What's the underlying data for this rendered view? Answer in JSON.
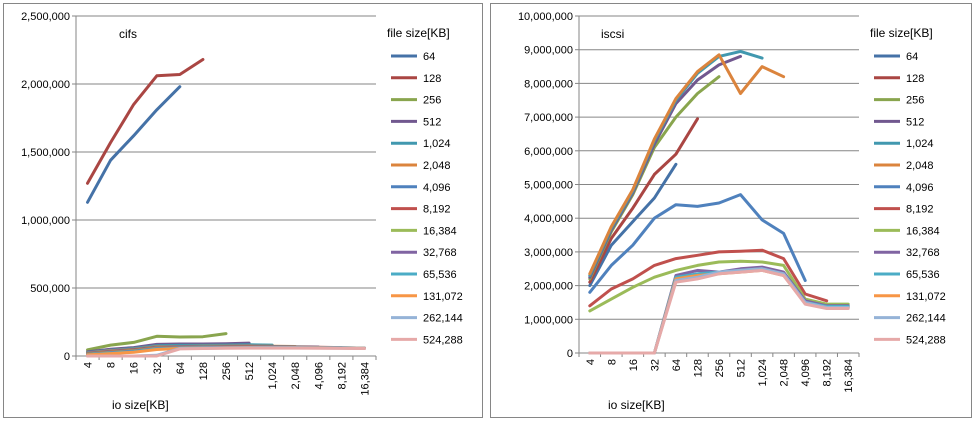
{
  "chart_data": [
    {
      "type": "line",
      "title": "cifs",
      "xlabel": "io size[KB]",
      "legend_title": "file size[KB]",
      "legend_position": "right",
      "grid": "horizontal",
      "categories": [
        "4",
        "8",
        "16",
        "32",
        "64",
        "128",
        "256",
        "512",
        "1,024",
        "2,048",
        "4,096",
        "8,192",
        "16,384"
      ],
      "ylim": [
        0,
        2500000
      ],
      "yticks": [
        "0",
        "500,000",
        "1,000,000",
        "1,500,000",
        "2,000,000",
        "2,500,000"
      ],
      "series": [
        {
          "name": "64",
          "color": "#4572A7",
          "values": [
            1130000,
            1440000,
            1620000,
            1810000,
            1980000,
            null,
            null,
            null,
            null,
            null,
            null,
            null,
            null
          ]
        },
        {
          "name": "128",
          "color": "#AA4643",
          "values": [
            1270000,
            1570000,
            1850000,
            2060000,
            2070000,
            2180000,
            null,
            null,
            null,
            null,
            null,
            null,
            null
          ]
        },
        {
          "name": "256",
          "color": "#89A54E",
          "values": [
            45000,
            80000,
            100000,
            145000,
            140000,
            142000,
            165000,
            null,
            null,
            null,
            null,
            null,
            null
          ]
        },
        {
          "name": "512",
          "color": "#71588F",
          "values": [
            30000,
            50000,
            62000,
            85000,
            88000,
            88000,
            90000,
            95000,
            null,
            null,
            null,
            null,
            null
          ]
        },
        {
          "name": "1,024",
          "color": "#4198AF",
          "values": [
            25000,
            42000,
            55000,
            75000,
            78000,
            78000,
            80000,
            82000,
            80000,
            null,
            null,
            null,
            null
          ]
        },
        {
          "name": "2,048",
          "color": "#DB843D",
          "values": [
            22000,
            38000,
            50000,
            68000,
            70000,
            72000,
            72000,
            74000,
            72000,
            70000,
            null,
            null,
            null
          ]
        },
        {
          "name": "4,096",
          "color": "#4F81BD",
          "values": [
            20000,
            35000,
            48000,
            65000,
            68000,
            70000,
            70000,
            72000,
            70000,
            68000,
            66000,
            null,
            null
          ]
        },
        {
          "name": "8,192",
          "color": "#C0504D",
          "values": [
            18000,
            32000,
            45000,
            62000,
            65000,
            66000,
            68000,
            70000,
            68000,
            66000,
            64000,
            62000,
            null
          ]
        },
        {
          "name": "16,384",
          "color": "#9BBB59",
          "values": [
            15000,
            28000,
            40000,
            58000,
            62000,
            64000,
            65000,
            66000,
            66000,
            64000,
            62000,
            60000,
            58000
          ]
        },
        {
          "name": "32,768",
          "color": "#8064A2",
          "values": [
            12000,
            25000,
            36000,
            55000,
            60000,
            62000,
            63000,
            64000,
            64000,
            63000,
            62000,
            60000,
            58000
          ]
        },
        {
          "name": "65,536",
          "color": "#4BACC6",
          "values": [
            10000,
            22000,
            32000,
            52000,
            58000,
            60000,
            61000,
            62000,
            62000,
            62000,
            61000,
            60000,
            58000
          ]
        },
        {
          "name": "131,072",
          "color": "#F79646",
          "values": [
            8000,
            18000,
            28000,
            48000,
            56000,
            58000,
            60000,
            61000,
            61000,
            61000,
            60000,
            59000,
            57000
          ]
        },
        {
          "name": "262,144",
          "color": "#95B3D7",
          "values": [
            0,
            0,
            0,
            5000,
            55000,
            57000,
            59000,
            60000,
            60000,
            60000,
            59000,
            58000,
            56000
          ]
        },
        {
          "name": "524,288",
          "color": "#E6A9A8",
          "values": [
            0,
            0,
            0,
            0,
            52000,
            55000,
            57000,
            58000,
            58000,
            58000,
            57000,
            56000,
            55000
          ]
        }
      ]
    },
    {
      "type": "line",
      "title": "iscsi",
      "xlabel": "io size[KB]",
      "legend_title": "file size[KB]",
      "legend_position": "right",
      "grid": "horizontal",
      "categories": [
        "4",
        "8",
        "16",
        "32",
        "64",
        "128",
        "256",
        "512",
        "1,024",
        "2,048",
        "4,096",
        "8,192",
        "16,384"
      ],
      "ylim": [
        0,
        10000000
      ],
      "yticks": [
        "0",
        "1,000,000",
        "2,000,000",
        "3,000,000",
        "4,000,000",
        "5,000,000",
        "6,000,000",
        "7,000,000",
        "8,000,000",
        "9,000,000",
        "10,000,000"
      ],
      "series": [
        {
          "name": "64",
          "color": "#4572A7",
          "values": [
            2000000,
            3200000,
            3900000,
            4600000,
            5600000,
            null,
            null,
            null,
            null,
            null,
            null,
            null,
            null
          ]
        },
        {
          "name": "128",
          "color": "#AA4643",
          "values": [
            2100000,
            3400000,
            4300000,
            5300000,
            5900000,
            6950000,
            null,
            null,
            null,
            null,
            null,
            null,
            null
          ]
        },
        {
          "name": "256",
          "color": "#89A54E",
          "values": [
            2200000,
            3600000,
            4700000,
            6100000,
            7000000,
            7700000,
            8200000,
            null,
            null,
            null,
            null,
            null,
            null
          ]
        },
        {
          "name": "512",
          "color": "#71588F",
          "values": [
            2250000,
            3650000,
            4750000,
            6200000,
            7400000,
            8100000,
            8550000,
            8800000,
            null,
            null,
            null,
            null,
            null
          ]
        },
        {
          "name": "1,024",
          "color": "#4198AF",
          "values": [
            2300000,
            3700000,
            4800000,
            6300000,
            7500000,
            8300000,
            8800000,
            8950000,
            8750000,
            null,
            null,
            null,
            null
          ]
        },
        {
          "name": "2,048",
          "color": "#DB843D",
          "values": [
            2350000,
            3750000,
            4850000,
            6350000,
            7550000,
            8350000,
            8850000,
            7700000,
            8500000,
            8200000,
            null,
            null,
            null
          ]
        },
        {
          "name": "4,096",
          "color": "#4F81BD",
          "values": [
            1800000,
            2600000,
            3200000,
            4000000,
            4400000,
            4350000,
            4450000,
            4700000,
            3950000,
            3550000,
            2150000,
            null,
            null
          ]
        },
        {
          "name": "8,192",
          "color": "#C0504D",
          "values": [
            1400000,
            1900000,
            2200000,
            2600000,
            2800000,
            2900000,
            3000000,
            3020000,
            3050000,
            2800000,
            1750000,
            1550000,
            null
          ]
        },
        {
          "name": "16,384",
          "color": "#9BBB59",
          "values": [
            1250000,
            1600000,
            1950000,
            2250000,
            2450000,
            2600000,
            2700000,
            2720000,
            2700000,
            2600000,
            1600000,
            1450000,
            1450000
          ]
        },
        {
          "name": "32,768",
          "color": "#8064A2",
          "values": [
            0,
            0,
            0,
            0,
            2300000,
            2450000,
            2400000,
            2500000,
            2550000,
            2400000,
            1550000,
            1400000,
            1400000
          ]
        },
        {
          "name": "65,536",
          "color": "#4BACC6",
          "values": [
            0,
            0,
            0,
            0,
            2250000,
            2350000,
            2400000,
            2450000,
            2500000,
            2350000,
            1500000,
            1380000,
            1380000
          ]
        },
        {
          "name": "131,072",
          "color": "#F79646",
          "values": [
            0,
            0,
            0,
            0,
            2200000,
            2300000,
            2350000,
            2400000,
            2450000,
            2300000,
            1480000,
            1350000,
            1350000
          ]
        },
        {
          "name": "262,144",
          "color": "#95B3D7",
          "values": [
            0,
            0,
            0,
            0,
            2150000,
            2250000,
            2400000,
            2450000,
            2500000,
            2350000,
            1500000,
            1350000,
            1350000
          ]
        },
        {
          "name": "524,288",
          "color": "#E6A9A8",
          "values": [
            0,
            0,
            0,
            0,
            2100000,
            2200000,
            2350000,
            2400000,
            2450000,
            2300000,
            1450000,
            1320000,
            1320000
          ]
        }
      ]
    }
  ]
}
